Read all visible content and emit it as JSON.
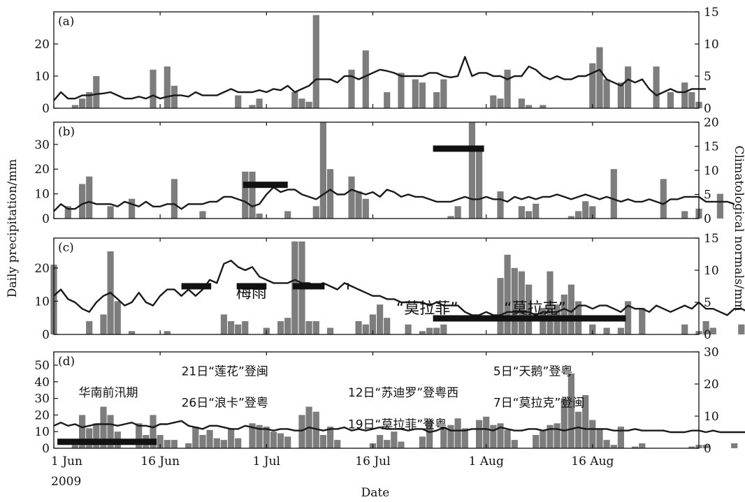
{
  "chart_data": {
    "type": "bar",
    "xlabel": "Date",
    "ylabel_left": "Daily precipitation/mm",
    "ylabel_right": "Climatological normals/mm",
    "x_ticks": [
      {
        "day": 0,
        "label": "1 Jun"
      },
      {
        "day": 15,
        "label": "16 Jun"
      },
      {
        "day": 30,
        "label": "1 Jul"
      },
      {
        "day": 45,
        "label": "16 Jul"
      },
      {
        "day": 61,
        "label": "1 Aug"
      },
      {
        "day": 76,
        "label": "16 Aug"
      }
    ],
    "year_label": "2009",
    "x_range_days": [
      0,
      91
    ],
    "bar_color": "#7d7d7d",
    "line_color": "#1a1a1a",
    "event_color": "#111111",
    "panels": [
      {
        "label": "(a)",
        "ylim_left": [
          0,
          30
        ],
        "ylim_right": [
          0,
          15
        ],
        "yticks_left": [
          0,
          10,
          20
        ],
        "yticks_right": [
          0,
          5,
          10,
          15
        ],
        "precip": [
          0,
          0,
          0,
          1,
          3,
          5,
          10,
          0,
          0,
          0,
          0,
          0,
          0,
          0,
          12,
          0,
          13,
          7,
          0,
          0,
          0,
          0,
          0,
          0,
          0,
          0,
          4,
          0,
          1,
          3,
          0,
          0,
          0,
          0,
          5,
          3,
          2,
          29,
          0,
          0,
          0,
          0,
          12,
          0,
          18,
          0,
          0,
          5,
          0,
          11,
          0,
          9,
          8,
          0,
          5,
          9,
          0,
          0,
          0,
          0,
          0,
          0,
          4,
          3,
          12,
          0,
          3,
          1,
          0,
          1,
          0,
          0,
          0,
          0,
          0,
          0,
          14,
          19,
          9,
          0,
          8,
          13,
          0,
          0,
          0,
          13,
          0,
          5,
          0,
          8,
          5,
          2
        ],
        "normals": [
          1.2,
          2.5,
          1.5,
          1.5,
          2,
          2,
          2.2,
          2.3,
          2.5,
          2,
          1.5,
          1.5,
          1.8,
          1.5,
          2,
          1.5,
          1.8,
          2,
          2,
          1.8,
          2.5,
          2,
          2,
          2,
          2.5,
          3,
          2.5,
          2.5,
          2.5,
          2.8,
          2.5,
          3,
          2.8,
          3.5,
          2.5,
          3,
          3.5,
          4.5,
          4.5,
          4.5,
          4,
          5,
          5,
          4.5,
          5,
          5.5,
          6,
          5.8,
          5.5,
          5,
          5,
          5,
          5,
          5.5,
          5.5,
          5,
          4.8,
          5,
          8,
          5,
          5.5,
          5.5,
          5,
          5,
          4.5,
          5,
          5,
          6.5,
          6,
          5,
          4.5,
          5,
          4.5,
          4.5,
          5,
          5,
          5.5,
          6,
          4.5,
          4,
          3.5,
          4.5,
          4,
          4.5,
          3,
          2,
          2.5,
          3,
          2.5,
          2.5,
          3,
          3,
          3
        ],
        "events": [],
        "annotations": []
      },
      {
        "label": "(b)",
        "ylim_left": [
          0,
          39
        ],
        "ylim_right": [
          0,
          20
        ],
        "yticks_left": [
          0,
          10,
          20,
          30
        ],
        "yticks_right": [
          0,
          5,
          10,
          15,
          20
        ],
        "precip": [
          0,
          0,
          5,
          0,
          14,
          17,
          0,
          0,
          5,
          0,
          0,
          8,
          0,
          0,
          0,
          0,
          0,
          16,
          0,
          0,
          0,
          3,
          0,
          0,
          0,
          0,
          0,
          19,
          19,
          2,
          0,
          0,
          0,
          3,
          0,
          0,
          0,
          5,
          39,
          20,
          0,
          0,
          17,
          11,
          8,
          0,
          0,
          0,
          0,
          0,
          0,
          0,
          0,
          0,
          0,
          0,
          1,
          5,
          0,
          39,
          28,
          0,
          0,
          11,
          0,
          0,
          5,
          3,
          6,
          0,
          0,
          0,
          0,
          1,
          3,
          7,
          5,
          0,
          0,
          20,
          0,
          0,
          0,
          0,
          0,
          0,
          16,
          0,
          0,
          3,
          0,
          4,
          0,
          0,
          10,
          0,
          0,
          0,
          7,
          18,
          2
        ],
        "normals": [
          1.5,
          3,
          2,
          2,
          3,
          3.5,
          3,
          3,
          3,
          2.5,
          3.5,
          3,
          2.5,
          3.5,
          2.5,
          2.5,
          3,
          3,
          2,
          3,
          3,
          3,
          3.5,
          3.5,
          4.5,
          4.5,
          4,
          3.5,
          2.5,
          3,
          5,
          6.5,
          5.5,
          6,
          6,
          5,
          4.5,
          4,
          5,
          6,
          5,
          5,
          6,
          5.5,
          5,
          5.5,
          4.5,
          6,
          5.5,
          4.5,
          5,
          4.5,
          4.5,
          4,
          3.5,
          3.5,
          3.5,
          4,
          4.5,
          4,
          4,
          4.5,
          4,
          4,
          3.5,
          4.5,
          4,
          4.5,
          4,
          4.5,
          4.5,
          5,
          4.5,
          4,
          4.5,
          5,
          4.5,
          4,
          4.5,
          4,
          3.5,
          4,
          3.5,
          3.5,
          4,
          3.5,
          3,
          4,
          4,
          4.5,
          4.5,
          4.5,
          3.5,
          3.5,
          3.5,
          3.5,
          3
        ],
        "events": [
          {
            "start": 26.7,
            "end": 33
          },
          {
            "start": 53.5,
            "end": 60.7
          }
        ],
        "annotations": []
      },
      {
        "label": "(c)",
        "ylim_left": [
          0,
          29
        ],
        "ylim_right": [
          0,
          15
        ],
        "yticks_left": [
          0,
          10,
          20
        ],
        "yticks_right": [
          0,
          5,
          10,
          15
        ],
        "precip": [
          21,
          0,
          0,
          0,
          0,
          4,
          0,
          6,
          25,
          10,
          0,
          1,
          0,
          0,
          0,
          0,
          1,
          0,
          0,
          0,
          0,
          0,
          0,
          0,
          6,
          4,
          3,
          4,
          0,
          0,
          2,
          0,
          4,
          5,
          28,
          28,
          4,
          4,
          0,
          2,
          0,
          0,
          0,
          4,
          3,
          6,
          9,
          5,
          0,
          0,
          3,
          0,
          1,
          2,
          2,
          3,
          0,
          0,
          0,
          0,
          0,
          0,
          0,
          17,
          24,
          20,
          19,
          15,
          0,
          8,
          19,
          9,
          12,
          15,
          10,
          0,
          3,
          0,
          2,
          0,
          2,
          10,
          0,
          8,
          0,
          0,
          0,
          0,
          0,
          3,
          0,
          1,
          4,
          2,
          0,
          0,
          0,
          3,
          3,
          9,
          3
        ],
        "normals": [
          6,
          7,
          5.5,
          5,
          4,
          3.5,
          5,
          6,
          6.5,
          5.5,
          4.5,
          5,
          6.5,
          5,
          4.5,
          6,
          7,
          7,
          6,
          7,
          6,
          7,
          8.5,
          8,
          11,
          11.5,
          10.5,
          10,
          10.5,
          9,
          8.5,
          8,
          8,
          8,
          8.5,
          8,
          8,
          7.5,
          8,
          7.5,
          7,
          8,
          7.5,
          7,
          6.5,
          6,
          6,
          5.5,
          5.5,
          5,
          5,
          5,
          5,
          4.5,
          5,
          4.5,
          4.5,
          4.5,
          3.5,
          3,
          3,
          3.5,
          3,
          3,
          3.5,
          3.5,
          3.5,
          3.5,
          3,
          3.5,
          3.5,
          3.5,
          4,
          3.5,
          4.5,
          4.5,
          4,
          4.5,
          4.5,
          4,
          3.5,
          4.5,
          4,
          4,
          3.5,
          4.5,
          4,
          3.5,
          4,
          4.5,
          4,
          5,
          4,
          4,
          3.5,
          3,
          4,
          4,
          3.5,
          4,
          3.5
        ],
        "events": [
          {
            "start": 18,
            "end": 22.2
          },
          {
            "start": 25.8,
            "end": 30
          },
          {
            "start": 33.7,
            "end": 38.2
          },
          {
            "start": 53.5,
            "end": 80.7
          }
        ],
        "event_tick_day": 41.5,
        "annotations": [
          {
            "text": "梅雨",
            "day": 25.7,
            "value": 11
          },
          {
            "text": "“莫拉菲”",
            "day": 48.3,
            "value": 6.3
          },
          {
            "text": "“莫拉克”",
            "day": 63.5,
            "value": 6.3
          }
        ]
      },
      {
        "label": "(d)",
        "ylim_left": [
          0,
          58
        ],
        "ylim_right": [
          0,
          30
        ],
        "yticks_left": [
          0,
          10,
          20,
          30,
          40,
          50
        ],
        "yticks_right": [
          0,
          10,
          20,
          30
        ],
        "precip": [
          0,
          0,
          0,
          2,
          20,
          12,
          15,
          25,
          20,
          10,
          0,
          0,
          15,
          8,
          20,
          8,
          5,
          5,
          0,
          3,
          13,
          8,
          11,
          6,
          5,
          12,
          6,
          0,
          15,
          14,
          13,
          10,
          9,
          7,
          0,
          20,
          25,
          22,
          8,
          13,
          5,
          0,
          0,
          0,
          0,
          3,
          8,
          5,
          10,
          4,
          0,
          0,
          7,
          17,
          0,
          13,
          14,
          18,
          12,
          0,
          17,
          19,
          14,
          15,
          11,
          5,
          0,
          0,
          8,
          11,
          14,
          15,
          30,
          45,
          22,
          32,
          17,
          12,
          5,
          2,
          13,
          0,
          1,
          3,
          0,
          0,
          0,
          0,
          0,
          0,
          1,
          2,
          2,
          0,
          0,
          0,
          3,
          0,
          5,
          2,
          1
        ],
        "normals": [
          7,
          8,
          7,
          7.5,
          6.5,
          7,
          7.5,
          7.5,
          7.5,
          7,
          7.5,
          8,
          7,
          7,
          6.5,
          7.5,
          7.5,
          8,
          8.5,
          7,
          6.5,
          6,
          7,
          7,
          6.5,
          6,
          6,
          7,
          6.5,
          6,
          6,
          5.5,
          6,
          6,
          5.5,
          5.5,
          6.5,
          6,
          5.5,
          6,
          6,
          6.5,
          5.5,
          6,
          5.5,
          6,
          6.5,
          6,
          6,
          6,
          5.5,
          6,
          6,
          5,
          5.5,
          6.5,
          5.5,
          5.5,
          5.5,
          6,
          6,
          6,
          5.5,
          6.5,
          6,
          5.5,
          5.5,
          6,
          6,
          5.5,
          6,
          6,
          5.5,
          6,
          6.5,
          6,
          6,
          6,
          6,
          5.5,
          5.5,
          5.5,
          6,
          5.5,
          5.5,
          5.5,
          5.5,
          5,
          5,
          5,
          5.5,
          5.5,
          5,
          5.5,
          5,
          5,
          5,
          5,
          5,
          5,
          5
        ],
        "events": [
          {
            "start": 0.5,
            "end": 14.5
          }
        ],
        "annotations": [
          {
            "text": "华南前汛期",
            "day": 3.5,
            "value": 31
          },
          {
            "text": "21日“莲花”登闽",
            "day": 18,
            "value": 44
          },
          {
            "text": "26日“浪卡”登粤",
            "day": 18,
            "value": 25
          },
          {
            "text": "12日“苏迪罗”登粤西",
            "day": 41.5,
            "value": 31
          },
          {
            "text": "19日“莫拉菲”登粤",
            "day": 41.5,
            "value": 12
          },
          {
            "text": "5日“天鹅”登粤",
            "day": 62,
            "value": 44
          },
          {
            "text": "7日“莫拉克”登闽",
            "day": 62,
            "value": 25
          }
        ]
      }
    ]
  }
}
